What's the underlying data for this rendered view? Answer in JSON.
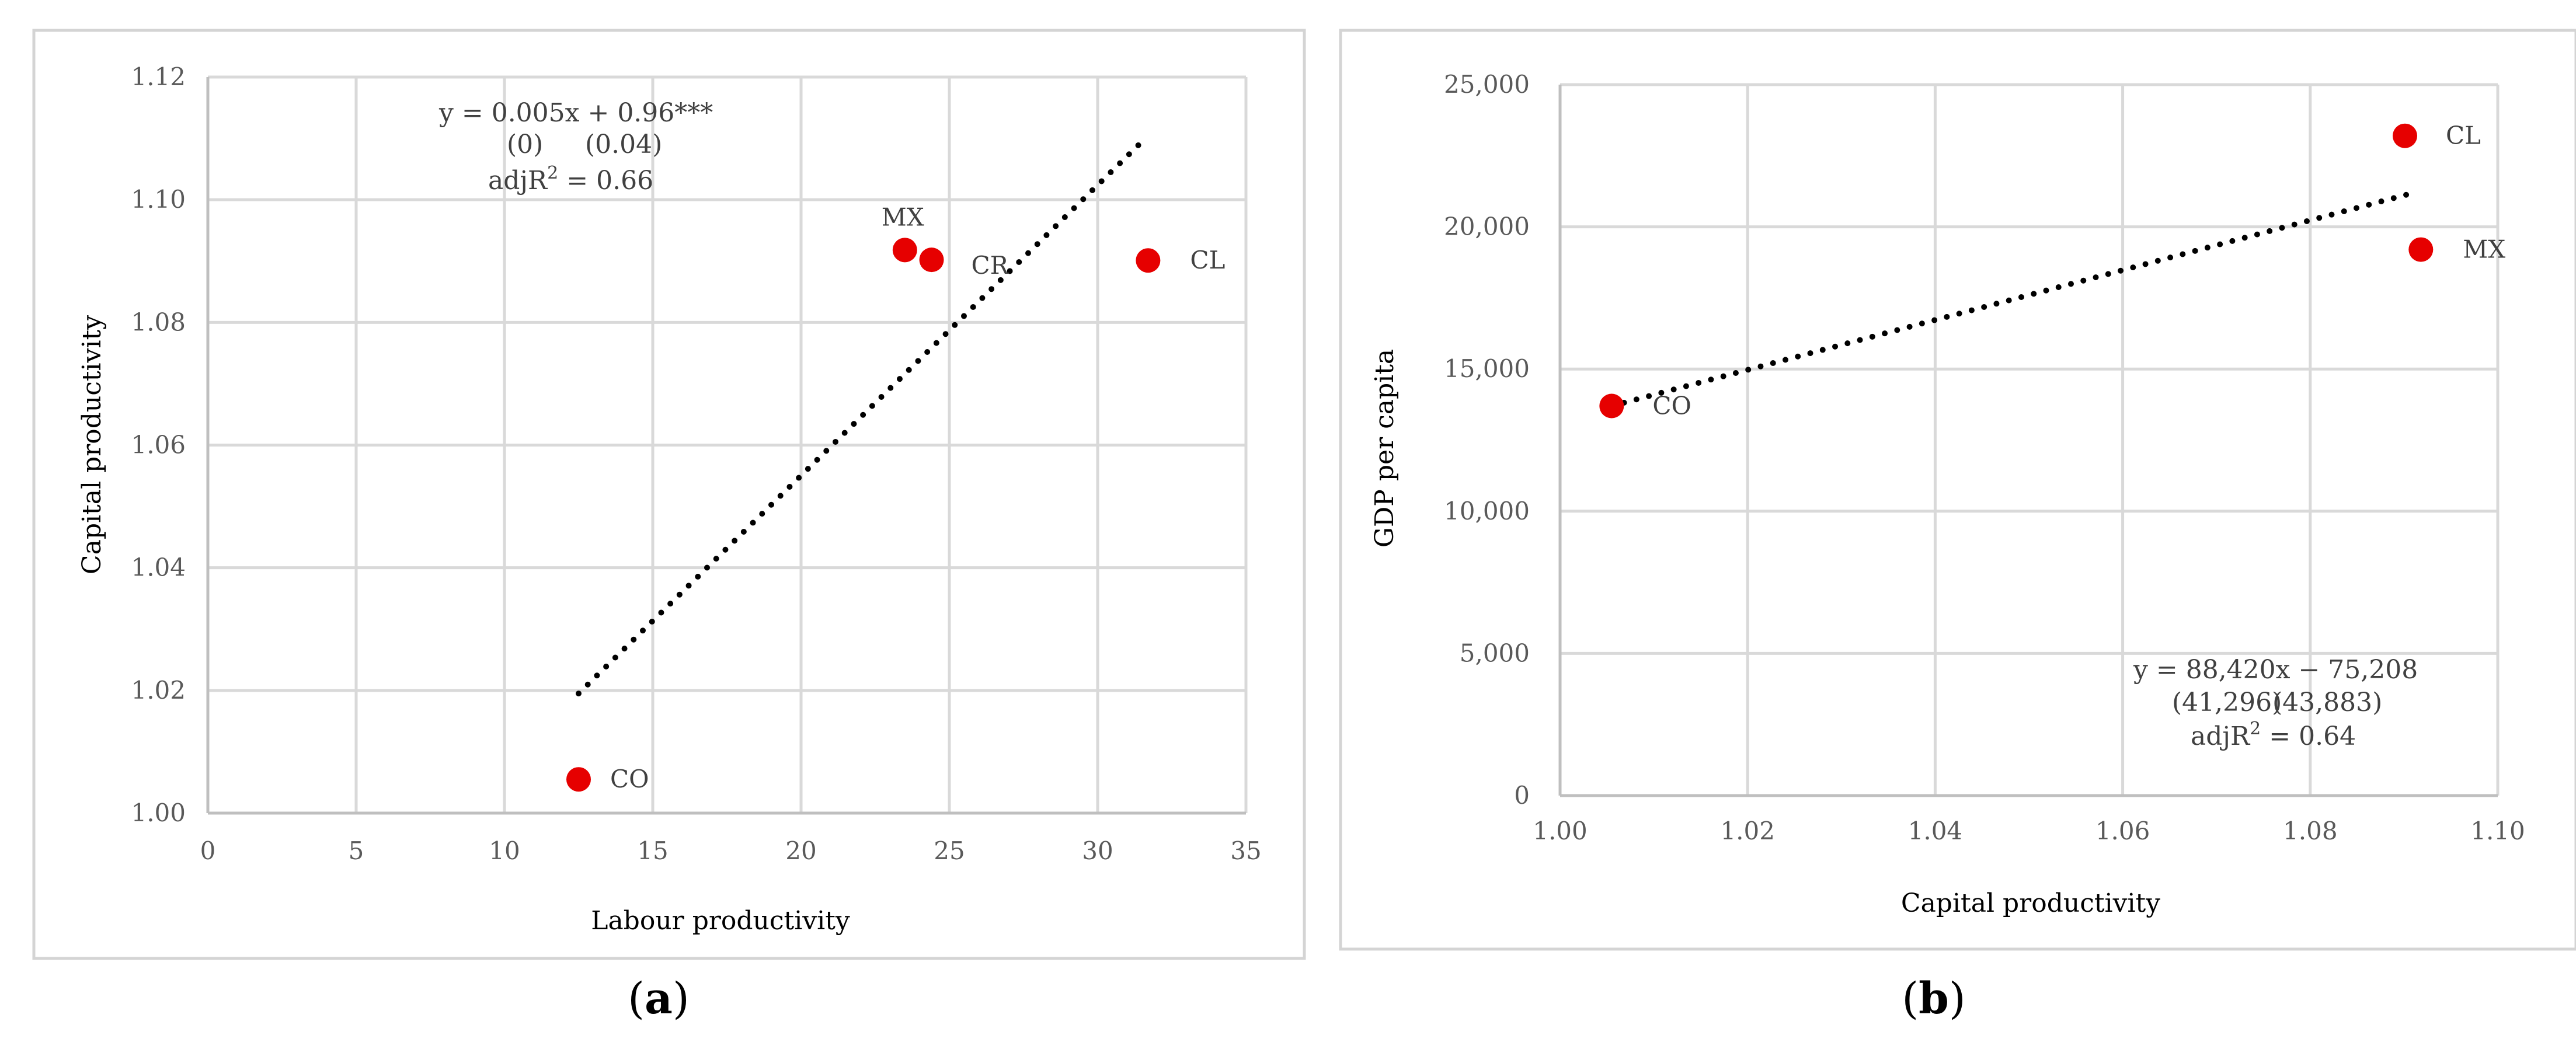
{
  "chart_data": [
    {
      "type": "scatter",
      "panel_label": "a",
      "xlabel": "Labour productivity",
      "ylabel": "Capital productivity",
      "xlim": [
        0,
        35
      ],
      "ylim": [
        1.0,
        1.12
      ],
      "x_ticks": [
        "0",
        "5",
        "10",
        "15",
        "20",
        "25",
        "30",
        "35"
      ],
      "y_ticks": [
        "1.00",
        "1.02",
        "1.04",
        "1.06",
        "1.08",
        "1.10",
        "1.12"
      ],
      "grid": true,
      "point_color": "#e60000",
      "points": [
        {
          "label": "CO",
          "x": 12.5,
          "y": 1.0055
        },
        {
          "label": "MX",
          "x": 23.5,
          "y": 1.0918
        },
        {
          "label": "CR",
          "x": 24.4,
          "y": 1.0902
        },
        {
          "label": "CL",
          "x": 31.7,
          "y": 1.0901
        }
      ],
      "trendline": {
        "x": [
          12.5,
          31.5
        ],
        "y": [
          1.0195,
          1.1095
        ],
        "style": "dotted"
      },
      "annotation": {
        "line1": "y = 0.005x + 0.96***",
        "line2a": "(0)",
        "line2b": "(0.04)",
        "line3_prefix": "adjR",
        "line3_sup": "2",
        "line3_suffix": " = 0.66"
      }
    },
    {
      "type": "scatter",
      "panel_label": "b",
      "xlabel": "Capital productivity",
      "ylabel": "GDP per capita",
      "xlim": [
        1.0,
        1.1
      ],
      "ylim": [
        0,
        25000
      ],
      "x_ticks": [
        "1.00",
        "1.02",
        "1.04",
        "1.06",
        "1.08",
        "1.10"
      ],
      "y_ticks": [
        "0",
        "5,000",
        "10,000",
        "15,000",
        "20,000",
        "25,000"
      ],
      "grid": true,
      "point_color": "#e60000",
      "points": [
        {
          "label": "CO",
          "x": 1.0055,
          "y": 13700
        },
        {
          "label": "CL",
          "x": 1.0901,
          "y": 23200
        },
        {
          "label": "MX",
          "x": 1.0918,
          "y": 19200
        }
      ],
      "trendline": {
        "x": [
          1.0055,
          1.0905
        ],
        "y": [
          13700,
          21150
        ],
        "style": "dotted"
      },
      "annotation": {
        "line1": "y = 88,420x − 75,208",
        "line2a": "(41,296)",
        "line2b": "(43,883)",
        "line3_prefix": "adjR",
        "line3_sup": "2",
        "line3_suffix": " = 0.64"
      }
    }
  ]
}
